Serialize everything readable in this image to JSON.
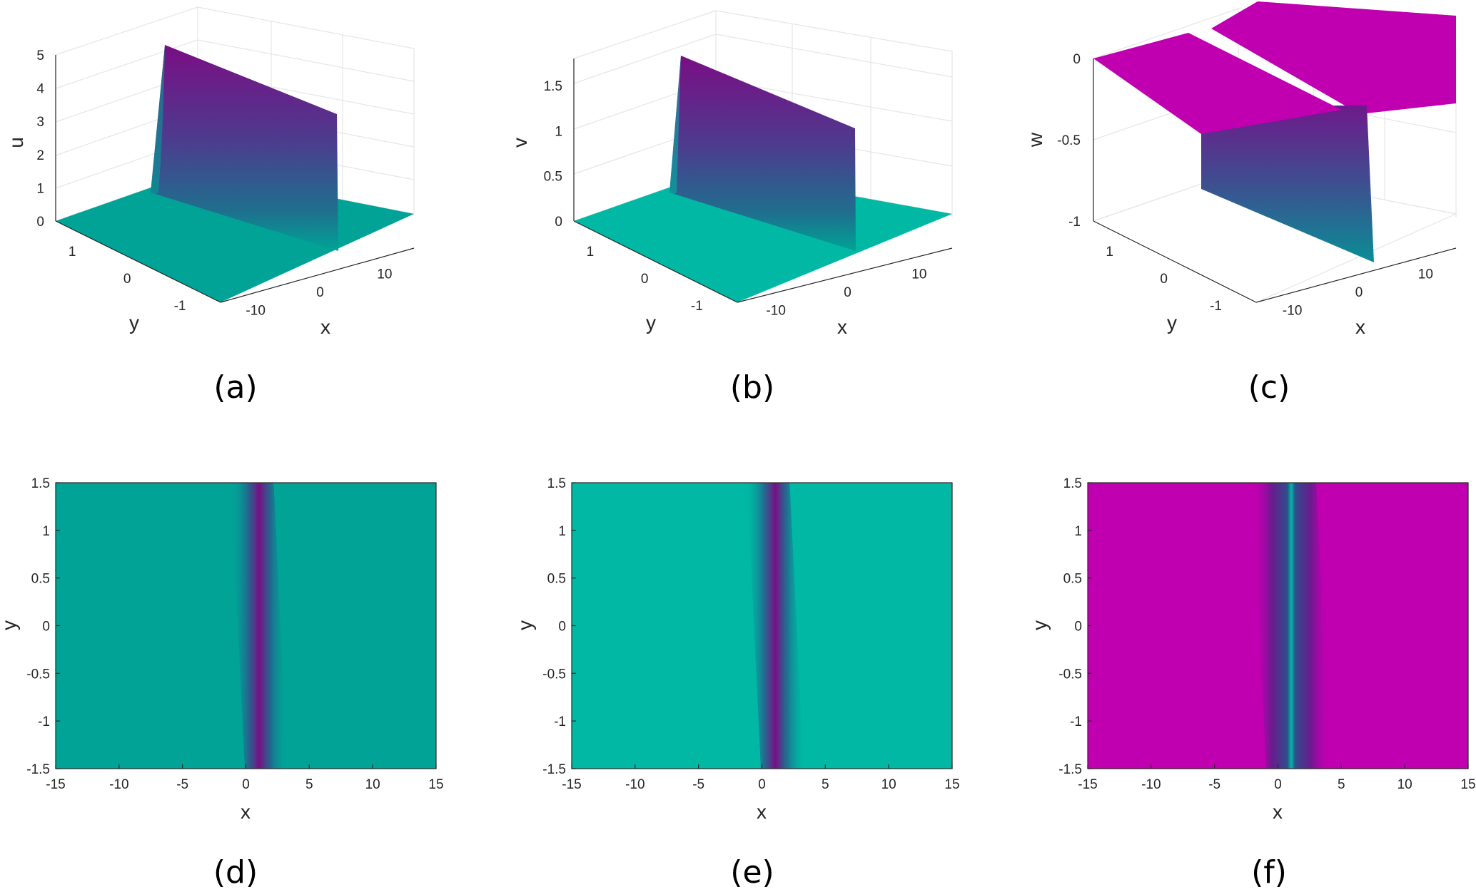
{
  "colors": {
    "teal": "#00a396",
    "teal_light": "#00b8a4",
    "purple": "#7a0e84",
    "blue": "#2e4e8c",
    "magenta": "#c000b0",
    "grid": "#e6e6e6",
    "axis": "#262626"
  },
  "chart_data": [
    {
      "panel": "a",
      "type": "surface",
      "caption": "(a)",
      "xlabel": "x",
      "ylabel": "y",
      "zlabel": "u",
      "xlim": [
        -15,
        15
      ],
      "ylim": [
        -1.5,
        1.5
      ],
      "zlim": [
        0,
        5
      ],
      "x_ticks": [
        "-10",
        "0",
        "10"
      ],
      "y_ticks": [
        "1",
        "0",
        "-1"
      ],
      "z_ticks": [
        "0",
        "1",
        "2",
        "3",
        "4",
        "5"
      ],
      "peak_value": 5,
      "background_value": 0
    },
    {
      "panel": "b",
      "type": "surface",
      "caption": "(b)",
      "xlabel": "x",
      "ylabel": "y",
      "zlabel": "v",
      "xlim": [
        -15,
        15
      ],
      "ylim": [
        -1.5,
        1.5
      ],
      "zlim": [
        0,
        1.8
      ],
      "x_ticks": [
        "-10",
        "0",
        "10"
      ],
      "y_ticks": [
        "1",
        "0",
        "-1"
      ],
      "z_ticks": [
        "0",
        "0.5",
        "1",
        "1.5"
      ],
      "peak_value": 1.8,
      "background_value": 0
    },
    {
      "panel": "c",
      "type": "surface",
      "caption": "(c)",
      "xlabel": "x",
      "ylabel": "y",
      "zlabel": "w",
      "xlim": [
        -15,
        15
      ],
      "ylim": [
        -1.5,
        1.5
      ],
      "zlim": [
        -1,
        0
      ],
      "x_ticks": [
        "-10",
        "0",
        "10"
      ],
      "y_ticks": [
        "1",
        "0",
        "-1"
      ],
      "z_ticks": [
        "0",
        "-0.5",
        "-1"
      ],
      "peak_value": -1,
      "background_value": 0
    },
    {
      "panel": "d",
      "type": "heatmap",
      "caption": "(d)",
      "xlabel": "x",
      "ylabel": "y",
      "xlim": [
        -15,
        15
      ],
      "ylim": [
        -1.5,
        1.5
      ],
      "x_ticks": [
        "-15",
        "-10",
        "-5",
        "0",
        "5",
        "10",
        "15"
      ],
      "y_ticks": [
        "1.5",
        "1",
        "0.5",
        "0",
        "-0.5",
        "-1",
        "-1.5"
      ],
      "ridge_x_at_top": 0.5,
      "ridge_x_at_bottom": 1.6
    },
    {
      "panel": "e",
      "type": "heatmap",
      "caption": "(e)",
      "xlabel": "x",
      "ylabel": "y",
      "xlim": [
        -15,
        15
      ],
      "ylim": [
        -1.5,
        1.5
      ],
      "x_ticks": [
        "-15",
        "-10",
        "-5",
        "0",
        "5",
        "10",
        "15"
      ],
      "y_ticks": [
        "1.5",
        "1",
        "0.5",
        "0",
        "-0.5",
        "-1",
        "-1.5"
      ],
      "ridge_x_at_top": 0.5,
      "ridge_x_at_bottom": 1.6
    },
    {
      "panel": "f",
      "type": "heatmap",
      "caption": "(f)",
      "xlabel": "x",
      "ylabel": "y",
      "xlim": [
        -15,
        15
      ],
      "ylim": [
        -1.5,
        1.5
      ],
      "x_ticks": [
        "-15",
        "-10",
        "-5",
        "0",
        "5",
        "10",
        "15"
      ],
      "y_ticks": [
        "1.5",
        "1",
        "0.5",
        "0",
        "-0.5",
        "-1",
        "-1.5"
      ],
      "ridge_x_at_top": 0.5,
      "ridge_x_at_bottom": 1.6
    }
  ]
}
